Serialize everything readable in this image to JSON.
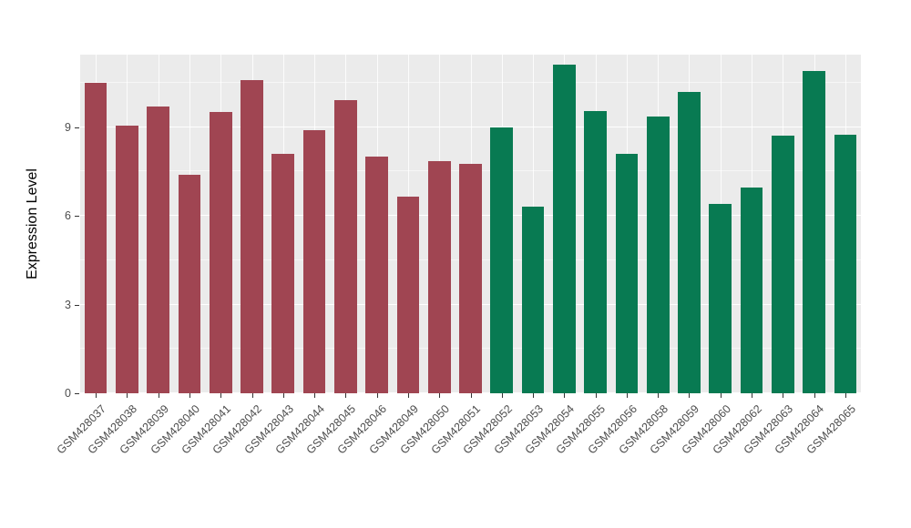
{
  "figure": {
    "background": "#FFFFFF",
    "panel_background": "#EBEBEB",
    "grid_color": "#FFFFFF",
    "tick_label_color": "#4D4D4D"
  },
  "chart_data": {
    "type": "bar",
    "title": "",
    "xlabel": "",
    "ylabel": "Expression Level",
    "ylim": [
      0,
      11.45
    ],
    "yticks": [
      0,
      3,
      6,
      9
    ],
    "yticks_minor": [
      1.5,
      4.5,
      7.5,
      10.5
    ],
    "grid": true,
    "legend_position": "none",
    "categories": [
      "GSM428037",
      "GSM428038",
      "GSM428039",
      "GSM428040",
      "GSM428041",
      "GSM428042",
      "GSM428043",
      "GSM428044",
      "GSM428045",
      "GSM428046",
      "GSM428049",
      "GSM428050",
      "GSM428051",
      "GSM428052",
      "GSM428053",
      "GSM428054",
      "GSM428055",
      "GSM428056",
      "GSM428058",
      "GSM428059",
      "GSM428060",
      "GSM428062",
      "GSM428063",
      "GSM428064",
      "GSM428065"
    ],
    "values": [
      10.5,
      9.05,
      9.7,
      7.4,
      9.5,
      10.6,
      8.1,
      8.9,
      9.9,
      8.0,
      6.65,
      7.85,
      7.75,
      9.0,
      6.3,
      11.1,
      9.55,
      8.1,
      9.35,
      10.2,
      6.4,
      6.95,
      8.7,
      10.9,
      8.75
    ],
    "groups": [
      "group1",
      "group1",
      "group1",
      "group1",
      "group1",
      "group1",
      "group1",
      "group1",
      "group1",
      "group1",
      "group1",
      "group1",
      "group1",
      "group2",
      "group2",
      "group2",
      "group2",
      "group2",
      "group2",
      "group2",
      "group2",
      "group2",
      "group2",
      "group2",
      "group2"
    ],
    "group_colors": {
      "group1": "#A04552",
      "group2": "#087A52"
    }
  }
}
